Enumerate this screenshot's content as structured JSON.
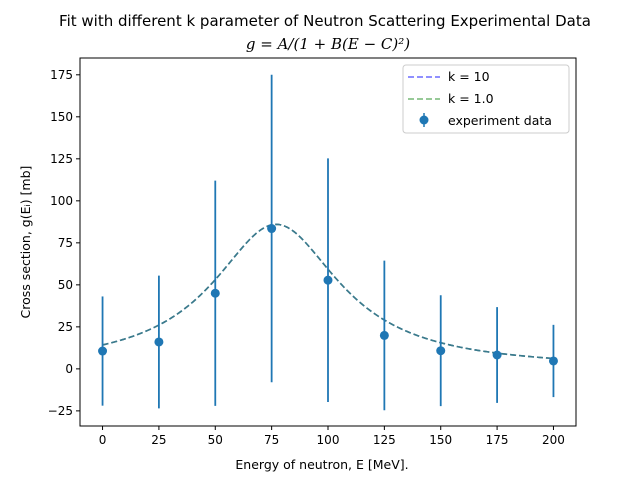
{
  "chart_data": {
    "type": "scatter",
    "title": "Fit with different k parameter of Neutron Scattering Experimental Data",
    "subtitle": "g = A/(1 + B(E − C)²)",
    "xlabel": "Energy of neutron, E [MeV].",
    "ylabel": "Cross section, g(Eᵢ) [mb]",
    "xlim": [
      -10,
      210
    ],
    "ylim": [
      -34,
      185
    ],
    "x_ticks": [
      0,
      25,
      50,
      75,
      100,
      125,
      150,
      175,
      200
    ],
    "y_ticks": [
      -25,
      0,
      25,
      50,
      75,
      100,
      125,
      150,
      175
    ],
    "x_tick_labels": [
      "0",
      "25",
      "50",
      "75",
      "100",
      "125",
      "150",
      "175",
      "200"
    ],
    "y_tick_labels": [
      "−25",
      "0",
      "25",
      "50",
      "75",
      "100",
      "125",
      "150",
      "175"
    ],
    "legend_position": "top-right",
    "grid": false,
    "series": [
      {
        "name": "experiment data",
        "kind": "errorbar",
        "color": "#1f77b4",
        "x": [
          0,
          25,
          50,
          75,
          100,
          125,
          150,
          175,
          200
        ],
        "y": [
          10.6,
          16.0,
          45.0,
          83.5,
          52.8,
          19.9,
          10.8,
          8.25,
          4.7
        ],
        "yerr": [
          32.5,
          39.5,
          67.0,
          91.5,
          72.5,
          44.5,
          33.0,
          28.5,
          21.5
        ]
      },
      {
        "name": "k = 10",
        "kind": "fit",
        "color": "#6b6bff",
        "style": "dashed",
        "params": {
          "A": 86.0,
          "B": 0.00085,
          "C": 77.0
        },
        "x_range": [
          0,
          200
        ]
      },
      {
        "name": "k = 1.0",
        "kind": "fit",
        "color": "#77b877",
        "style": "dashed",
        "params": {
          "A": 86.0,
          "B": 0.00085,
          "C": 77.0
        },
        "x_range": [
          0,
          200
        ]
      }
    ],
    "fit_combined_color": "#3a7a8c"
  },
  "legend": {
    "items": [
      {
        "label": "k = 10",
        "color": "#6b6bff"
      },
      {
        "label": "k = 1.0",
        "color": "#77b877"
      },
      {
        "label": "experiment data",
        "color": "#1f77b4"
      }
    ]
  }
}
